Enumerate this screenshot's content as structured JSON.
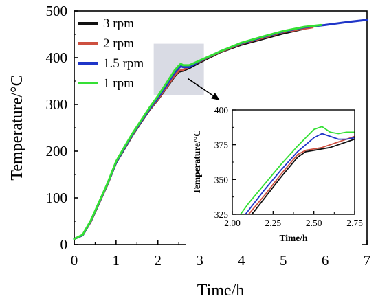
{
  "chart_data": [
    {
      "id": "main",
      "type": "line",
      "xlabel": "Time/h",
      "ylabel": "Temperature/°C",
      "xlim": [
        0,
        7
      ],
      "ylim": [
        0,
        500
      ],
      "xticks": [
        "0",
        "1",
        "2",
        "3",
        "4",
        "5",
        "6",
        "7"
      ],
      "yticks": [
        "0",
        "100",
        "200",
        "300",
        "400",
        "500"
      ],
      "legend_position": "top-left",
      "grid": false,
      "series": [
        {
          "name": "3 rpm",
          "color": "#111111",
          "x": [
            0.0,
            0.2,
            0.4,
            0.6,
            0.8,
            1.0,
            1.2,
            1.4,
            1.6,
            1.8,
            2.0,
            2.2,
            2.4,
            2.5,
            2.6,
            2.75,
            3.0,
            3.5,
            4.0,
            4.5,
            5.0,
            5.5
          ],
          "y": [
            12,
            20,
            50,
            90,
            130,
            175,
            205,
            235,
            262,
            288,
            310,
            335,
            360,
            370,
            372,
            378,
            390,
            412,
            428,
            440,
            452,
            462
          ]
        },
        {
          "name": "2 rpm",
          "color": "#cd5040",
          "x": [
            0.0,
            0.2,
            0.4,
            0.6,
            0.8,
            1.0,
            1.2,
            1.4,
            1.6,
            1.8,
            2.0,
            2.2,
            2.4,
            2.5,
            2.6,
            2.75,
            3.0,
            3.5,
            4.0,
            4.5,
            5.0,
            5.5,
            5.7
          ],
          "y": [
            12,
            20,
            50,
            90,
            130,
            176,
            206,
            236,
            263,
            289,
            311,
            336,
            362,
            372,
            374,
            381,
            392,
            413,
            430,
            442,
            455,
            462,
            465
          ]
        },
        {
          "name": "1.5 rpm",
          "color": "#1f35c8",
          "x": [
            0.0,
            0.2,
            0.4,
            0.6,
            0.8,
            1.0,
            1.2,
            1.4,
            1.6,
            1.8,
            2.0,
            2.2,
            2.4,
            2.5,
            2.55,
            2.6,
            2.75,
            3.0,
            3.5,
            4.0,
            4.5,
            5.0,
            5.5,
            6.0,
            6.5,
            7.0
          ],
          "y": [
            12,
            20,
            51,
            91,
            131,
            176,
            207,
            237,
            264,
            290,
            314,
            340,
            368,
            378,
            382,
            380,
            380,
            393,
            414,
            431,
            444,
            456,
            465,
            470,
            476,
            481
          ]
        },
        {
          "name": "1 rpm",
          "color": "#35e035",
          "x": [
            0.0,
            0.2,
            0.4,
            0.6,
            0.8,
            1.0,
            1.2,
            1.4,
            1.6,
            1.8,
            2.0,
            2.2,
            2.4,
            2.5,
            2.55,
            2.6,
            2.75,
            3.0,
            3.5,
            4.0,
            4.5,
            5.0,
            5.5,
            5.9
          ],
          "y": [
            12,
            21,
            52,
            92,
            132,
            178,
            209,
            239,
            266,
            293,
            318,
            345,
            373,
            383,
            387,
            384,
            384,
            394,
            414,
            432,
            445,
            457,
            466,
            470
          ]
        }
      ],
      "highlight_box": {
        "x": [
          1.9,
          3.1
        ],
        "y": [
          320,
          430
        ]
      }
    },
    {
      "id": "inset",
      "type": "line",
      "xlabel": "Time/h",
      "ylabel": "Temperature/°C",
      "xlim": [
        2.0,
        2.75
      ],
      "ylim": [
        325,
        400
      ],
      "xticks": [
        "2.00",
        "2.25",
        "2.50",
        "2.75"
      ],
      "yticks": [
        "325",
        "350",
        "375",
        "400"
      ],
      "series": [
        {
          "name": "3 rpm",
          "color": "#111111",
          "x": [
            2.12,
            2.2,
            2.3,
            2.4,
            2.45,
            2.5,
            2.55,
            2.6,
            2.65,
            2.7,
            2.75
          ],
          "y": [
            325,
            337,
            352,
            366,
            370,
            371,
            372,
            373,
            375,
            377,
            379
          ]
        },
        {
          "name": "2 rpm",
          "color": "#cd5040",
          "x": [
            2.1,
            2.2,
            2.3,
            2.4,
            2.45,
            2.5,
            2.55,
            2.6,
            2.65,
            2.7,
            2.75
          ],
          "y": [
            325,
            339,
            354,
            368,
            371,
            372,
            373,
            375,
            377,
            379,
            381
          ]
        },
        {
          "name": "1.5 rpm",
          "color": "#1f35c8",
          "x": [
            2.08,
            2.2,
            2.3,
            2.4,
            2.45,
            2.5,
            2.55,
            2.6,
            2.65,
            2.7,
            2.75
          ],
          "y": [
            325,
            343,
            357,
            370,
            375,
            380,
            383,
            381,
            379,
            379,
            380
          ]
        },
        {
          "name": "1 rpm",
          "color": "#35e035",
          "x": [
            2.05,
            2.1,
            2.2,
            2.3,
            2.4,
            2.45,
            2.5,
            2.55,
            2.6,
            2.65,
            2.7,
            2.75
          ],
          "y": [
            325,
            333,
            347,
            361,
            374,
            380,
            386,
            388,
            384,
            383,
            384,
            384
          ]
        }
      ]
    }
  ]
}
